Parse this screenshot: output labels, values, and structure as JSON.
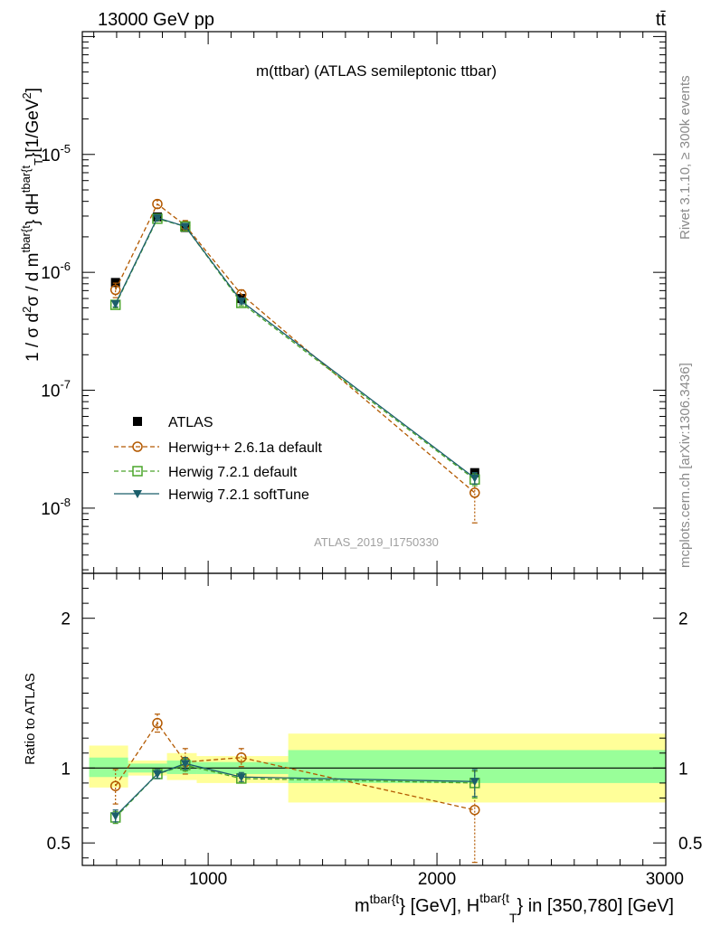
{
  "header": {
    "energy_label": "13000 GeV pp",
    "process_label": "tt̄"
  },
  "side_labels": {
    "rivet": "Rivet 3.1.10, ≥ 300k events",
    "site": "mcplots.cern.ch [arXiv:1306.3436]"
  },
  "colors": {
    "data": "#000000",
    "herwigpp": "#b35900",
    "herwig721": "#4aa52a",
    "softtune": "#1b5e6b",
    "band_inner": "#99ff99",
    "band_outer": "#ffff99"
  },
  "chart_data": [
    {
      "type": "line",
      "panel": "main",
      "title": "m(ttbar) (ATLAS semileptonic ttbar)",
      "analysis_label": "ATLAS_2019_I1750330",
      "ylabel_parts": {
        "a": "1 / σ d",
        "b": "2",
        "c": "σ / d m",
        "d": "tbar{t",
        "e": "} dH",
        "f": "tbar{t",
        "g": "T",
        "h": "}[1/GeV",
        "i": "2",
        "j": "]"
      },
      "yscale": "log",
      "xlim": [
        450,
        3000
      ],
      "ylim": [
        2.8e-09,
        0.00011
      ],
      "y_ticks": [
        {
          "exp": "-8",
          "base": "10",
          "value": 1e-08
        },
        {
          "exp": "-7",
          "base": "10",
          "value": 1e-07
        },
        {
          "exp": "-6",
          "base": "10",
          "value": 1e-06
        },
        {
          "exp": "-5",
          "base": "10",
          "value": 1e-05
        }
      ],
      "legend": {
        "position": "middle-left",
        "entries": [
          "ATLAS",
          "Herwig++ 2.6.1a default",
          "Herwig 7.2.1 default",
          "Herwig 7.2.1 softTune"
        ]
      },
      "series": [
        {
          "name": "ATLAS",
          "marker": "square-filled",
          "x": [
            595,
            778,
            900,
            1145,
            2165
          ],
          "y": [
            8.2e-07,
            2.95e-06,
            2.4e-06,
            6e-07,
            2e-08
          ],
          "xerr": [
            [
              595,
              595
            ],
            [
              778,
              778
            ],
            [
              900,
              900
            ],
            [
              1145,
              1145
            ],
            [
              2165,
              2165
            ]
          ],
          "yerr_low": [
            8.2e-07,
            2.95e-06,
            2.4e-06,
            6e-07,
            2e-08
          ],
          "yerr_high": [
            8.2e-07,
            2.95e-06,
            2.4e-06,
            6e-07,
            2e-08
          ]
        },
        {
          "name": "Herwig++ 2.6.1a default",
          "marker": "circle-open",
          "style": "dashed",
          "x": [
            595,
            778,
            900,
            1145,
            2165
          ],
          "y": [
            7.1e-07,
            3.8e-06,
            2.5e-06,
            6.5e-07,
            1.35e-08
          ],
          "yerr_low": [
            6.1e-07,
            3.5e-06,
            2.25e-06,
            5.9e-07,
            7.5e-09
          ],
          "yerr_high": [
            8.1e-07,
            4.1e-06,
            2.75e-06,
            7.1e-07,
            1.9e-08
          ]
        },
        {
          "name": "Herwig 7.2.1 default",
          "marker": "square-open",
          "style": "dashed",
          "x": [
            595,
            778,
            900,
            1145,
            2165
          ],
          "y": [
            5.3e-07,
            2.85e-06,
            2.45e-06,
            5.5e-07,
            1.75e-08
          ],
          "yerr_low": [
            5e-07,
            2.75e-06,
            2.35e-06,
            5.2e-07,
            1.55e-08
          ],
          "yerr_high": [
            5.6e-07,
            2.95e-06,
            2.55e-06,
            5.8e-07,
            1.95e-08
          ]
        },
        {
          "name": "Herwig 7.2.1 softTune",
          "marker": "triangle-down-filled",
          "style": "solid",
          "x": [
            595,
            778,
            900,
            1145,
            2165
          ],
          "y": [
            5.4e-07,
            2.9e-06,
            2.45e-06,
            5.7e-07,
            1.8e-08
          ],
          "yerr_low": [
            5.1e-07,
            2.8e-06,
            2.35e-06,
            5.4e-07,
            1.6e-08
          ],
          "yerr_high": [
            5.7e-07,
            3e-06,
            2.55e-06,
            6e-07,
            2e-08
          ]
        }
      ]
    },
    {
      "type": "line",
      "panel": "ratio",
      "ylabel": "Ratio to ATLAS",
      "xlabel_parts": {
        "a": "m",
        "b": "tbar{t",
        "c": "} [GeV], H",
        "d": "tbar{t",
        "e": "T",
        "f": "} in [350,780] [GeV]"
      },
      "xlim": [
        450,
        3000
      ],
      "ylim": [
        0.35,
        2.3
      ],
      "x_ticks": [
        {
          "label": "1000",
          "value": 1000
        },
        {
          "label": "2000",
          "value": 2000
        },
        {
          "label": "3000",
          "value": 3000
        }
      ],
      "y_ticks": [
        {
          "label": "0.5",
          "value": 0.5
        },
        {
          "label": "1",
          "value": 1
        },
        {
          "label": "2",
          "value": 2
        }
      ],
      "bins": [
        {
          "x_low": 480,
          "x_high": 650,
          "inner": [
            0.94,
            1.07
          ],
          "outer": [
            0.87,
            1.15
          ]
        },
        {
          "x_low": 650,
          "x_high": 820,
          "inner": [
            0.97,
            1.03
          ],
          "outer": [
            0.95,
            1.05
          ]
        },
        {
          "x_low": 820,
          "x_high": 950,
          "inner": [
            0.96,
            1.05
          ],
          "outer": [
            0.92,
            1.1
          ]
        },
        {
          "x_low": 950,
          "x_high": 1350,
          "inner": [
            0.96,
            1.04
          ],
          "outer": [
            0.9,
            1.08
          ]
        },
        {
          "x_low": 1350,
          "x_high": 3000,
          "inner": [
            0.9,
            1.12
          ],
          "outer": [
            0.77,
            1.23
          ]
        }
      ],
      "series": [
        {
          "name": "Herwig++ 2.6.1a default",
          "marker": "circle-open",
          "style": "dashed",
          "x": [
            595,
            778,
            900,
            1145,
            2165
          ],
          "y": [
            0.88,
            1.3,
            1.04,
            1.07,
            0.72
          ],
          "yerr_low": [
            0.76,
            1.24,
            0.96,
            1.01,
            0.37
          ],
          "yerr_high": [
            0.99,
            1.36,
            1.13,
            1.13,
            0.98
          ]
        },
        {
          "name": "Herwig 7.2.1 default",
          "marker": "square-open",
          "style": "dashed",
          "x": [
            595,
            778,
            900,
            1145,
            2165
          ],
          "y": [
            0.67,
            0.96,
            1.02,
            0.93,
            0.9
          ],
          "yerr_low": [
            0.63,
            0.93,
            0.98,
            0.9,
            0.8
          ],
          "yerr_high": [
            0.71,
            0.99,
            1.06,
            0.96,
            0.98
          ]
        },
        {
          "name": "Herwig 7.2.1 softTune",
          "marker": "triangle-down-filled",
          "style": "solid",
          "x": [
            595,
            778,
            900,
            1145,
            2165
          ],
          "y": [
            0.68,
            0.96,
            1.03,
            0.94,
            0.91
          ],
          "yerr_low": [
            0.64,
            0.93,
            0.99,
            0.91,
            0.81
          ],
          "yerr_high": [
            0.72,
            0.99,
            1.07,
            0.97,
            0.99
          ]
        }
      ]
    }
  ]
}
